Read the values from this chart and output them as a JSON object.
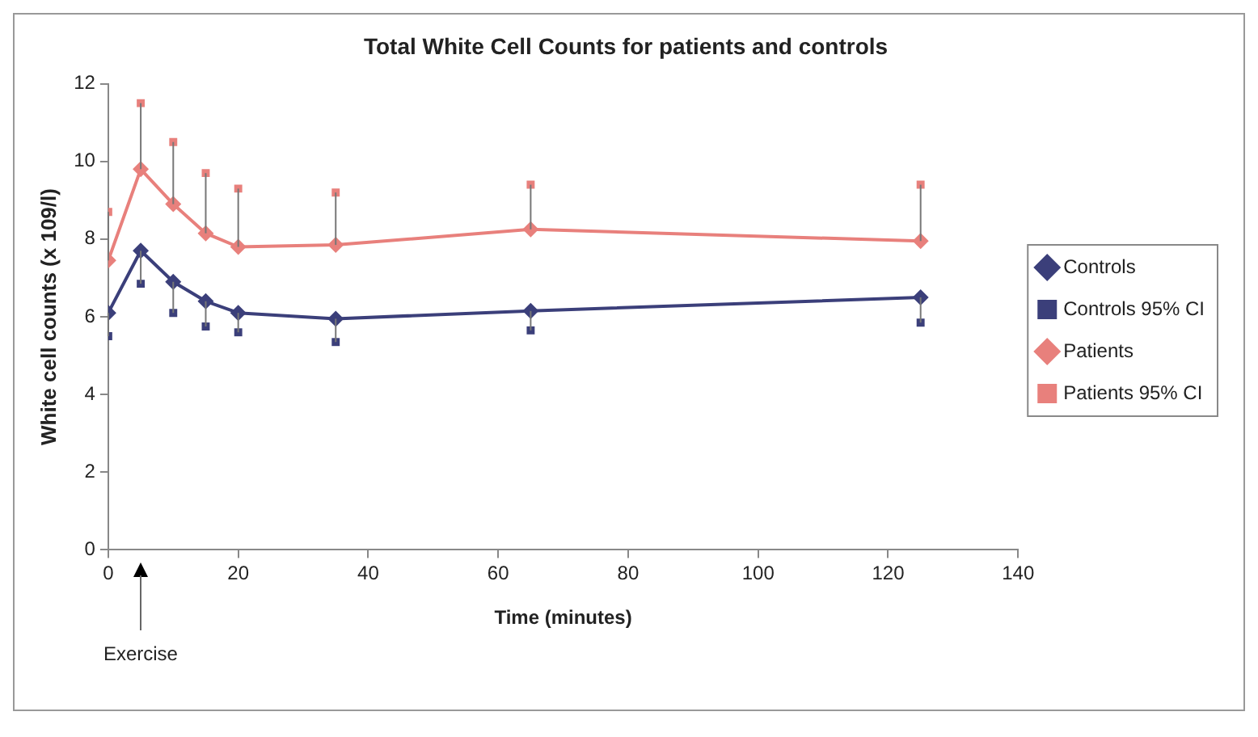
{
  "chart_data": {
    "type": "line",
    "title": "Total White Cell Counts for patients and controls",
    "xlabel": "Time (minutes)",
    "ylabel": "White cell counts (x 109/l)",
    "x": [
      0,
      5,
      10,
      15,
      20,
      35,
      65,
      125
    ],
    "xlim": [
      0,
      140
    ],
    "xticks": [
      0,
      20,
      40,
      60,
      80,
      100,
      120,
      140
    ],
    "ylim": [
      0,
      12
    ],
    "yticks": [
      0,
      2,
      4,
      6,
      8,
      10,
      12
    ],
    "grid": false,
    "legend": "right",
    "marker": "diamond",
    "annotations": [
      "Exercise"
    ],
    "series": [
      {
        "name": "Controls",
        "color": "#3b3f7a",
        "values": [
          6.1,
          7.7,
          6.9,
          6.4,
          6.1,
          5.95,
          6.15,
          6.5
        ],
        "errors": [
          [
            5.5,
            6.1
          ],
          [
            6.85,
            7.7
          ],
          [
            6.1,
            6.9
          ],
          [
            5.75,
            6.4
          ],
          [
            5.6,
            6.1
          ],
          [
            5.35,
            5.95
          ],
          [
            5.65,
            6.15
          ],
          [
            5.85,
            6.5
          ]
        ]
      },
      {
        "name": "Controls 95% CI",
        "type": "scatter",
        "marker": "square",
        "color": "#3b3f7a",
        "values": [
          5.5,
          6.85,
          6.1,
          5.75,
          5.6,
          5.35,
          5.65,
          5.85
        ]
      },
      {
        "name": "Patients",
        "color": "#e8807c",
        "values": [
          7.45,
          9.8,
          8.9,
          8.15,
          7.8,
          7.85,
          8.25,
          7.95
        ],
        "errors": [
          [
            7.45,
            8.7
          ],
          [
            9.8,
            11.5
          ],
          [
            8.9,
            10.5
          ],
          [
            8.15,
            9.7
          ],
          [
            7.8,
            9.3
          ],
          [
            7.85,
            9.2
          ],
          [
            8.25,
            9.4
          ],
          [
            7.95,
            9.4
          ]
        ]
      },
      {
        "name": "Patients 95% CI",
        "type": "scatter",
        "marker": "square",
        "color": "#e8807c",
        "values": [
          8.7,
          11.5,
          10.5,
          9.7,
          9.3,
          9.2,
          9.4,
          9.4
        ]
      }
    ]
  }
}
